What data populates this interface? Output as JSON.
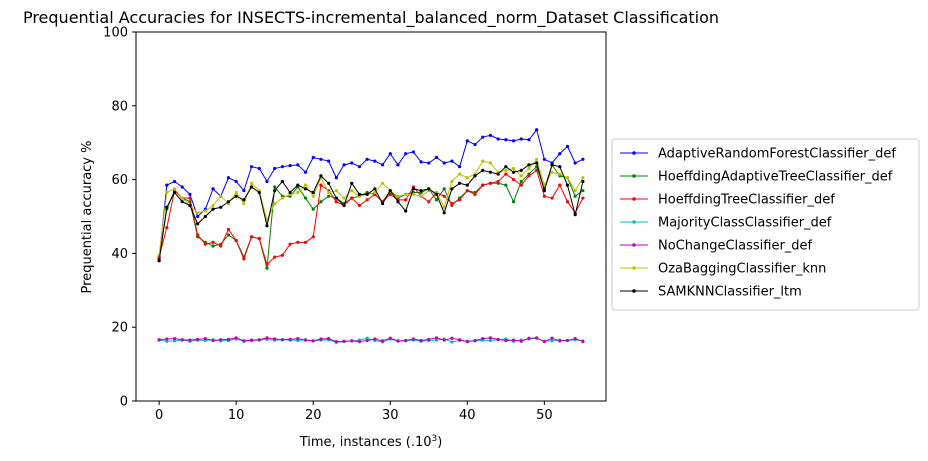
{
  "chart_data": {
    "type": "line",
    "title": "Prequential Accuracies for INSECTS-incremental_balanced_norm_Dataset Classification",
    "xlabel": "Time, instances (.10",
    "xlabel_superscript": "3",
    "xlabel_suffix": ")",
    "ylabel": "Prequential accuracy %",
    "xlim": [
      -3,
      58
    ],
    "ylim": [
      0,
      100
    ],
    "xticks": [
      0,
      10,
      20,
      30,
      40,
      50
    ],
    "yticks": [
      0,
      20,
      40,
      60,
      80,
      100
    ],
    "grid": false,
    "legend_placement": "center-right-outside",
    "x": [
      0,
      1,
      2,
      3,
      4,
      5,
      6,
      7,
      8,
      9,
      10,
      11,
      12,
      13,
      14,
      15,
      16,
      17,
      18,
      19,
      20,
      21,
      22,
      23,
      24,
      25,
      26,
      27,
      28,
      29,
      30,
      31,
      32,
      33,
      34,
      35,
      36,
      37,
      38,
      39,
      40,
      41,
      42,
      43,
      44,
      45,
      46,
      47,
      48,
      49,
      50,
      51,
      52,
      53,
      54,
      55
    ],
    "series": [
      {
        "name": "AdaptiveRandomForestClassifier_def",
        "color": "#0000ff",
        "values": [
          38.5,
          58.5,
          59.5,
          58.0,
          56.0,
          50.0,
          52.0,
          57.5,
          55.5,
          60.5,
          59.5,
          57.0,
          63.5,
          63.0,
          59.5,
          63.0,
          63.5,
          63.8,
          64.0,
          62.0,
          66.0,
          65.5,
          65.0,
          60.5,
          64.0,
          64.5,
          63.5,
          65.5,
          65.0,
          64.0,
          67.0,
          64.0,
          67.0,
          67.5,
          64.8,
          64.5,
          66.0,
          64.5,
          65.0,
          63.5,
          70.5,
          69.5,
          71.5,
          72.0,
          71.0,
          70.8,
          70.5,
          71.0,
          70.8,
          73.5,
          65.5,
          64.5,
          67.0,
          69.0,
          64.5,
          65.5
        ]
      },
      {
        "name": "HoeffdingAdaptiveTreeClassifier_def",
        "color": "#008000",
        "values": [
          39.0,
          52.0,
          57.0,
          55.0,
          54.0,
          44.5,
          43.0,
          42.0,
          42.5,
          45.0,
          43.5,
          39.0,
          44.5,
          44.0,
          36.0,
          58.0,
          55.5,
          55.5,
          58.0,
          55.0,
          52.0,
          54.0,
          55.5,
          55.0,
          53.5,
          55.0,
          55.5,
          56.5,
          56.0,
          54.0,
          57.0,
          55.0,
          56.0,
          56.5,
          56.5,
          57.5,
          54.5,
          57.5,
          53.0,
          55.0,
          57.0,
          56.5,
          58.5,
          59.0,
          59.0,
          58.5,
          54.0,
          59.5,
          61.5,
          63.5,
          57.5,
          64.0,
          61.0,
          60.5,
          55.5,
          57.0
        ]
      },
      {
        "name": "HoeffdingTreeClassifier_def",
        "color": "#ff0000",
        "values": [
          39.0,
          47.0,
          57.0,
          55.0,
          55.0,
          45.0,
          42.5,
          43.0,
          42.0,
          46.5,
          43.5,
          38.5,
          44.5,
          44.0,
          37.0,
          39.0,
          39.5,
          42.5,
          43.0,
          43.0,
          44.5,
          58.5,
          57.0,
          54.0,
          53.0,
          55.0,
          53.0,
          54.5,
          56.0,
          54.0,
          56.0,
          54.5,
          54.5,
          58.0,
          55.5,
          54.0,
          56.5,
          55.5,
          53.5,
          54.5,
          57.0,
          56.0,
          58.5,
          59.0,
          59.5,
          61.5,
          60.0,
          58.5,
          61.0,
          62.5,
          55.5,
          55.0,
          58.5,
          54.0,
          51.0,
          55.0
        ]
      },
      {
        "name": "MajorityClassClassifier_def",
        "color": "#00bfbf",
        "values": [
          16.5,
          16.2,
          16.3,
          16.5,
          16.2,
          16.5,
          16.4,
          16.6,
          16.3,
          16.4,
          16.8,
          16.2,
          16.4,
          16.5,
          16.7,
          16.5,
          16.6,
          16.5,
          16.4,
          16.6,
          16.3,
          16.5,
          16.6,
          15.9,
          16.1,
          16.3,
          16.5,
          17.0,
          16.4,
          16.0,
          16.8,
          16.2,
          16.3,
          16.5,
          16.2,
          16.4,
          16.5,
          16.8,
          16.0,
          16.4,
          16.2,
          16.3,
          16.5,
          16.4,
          16.6,
          16.8,
          16.2,
          16.5,
          16.8,
          17.0,
          16.2,
          16.3,
          16.5,
          16.4,
          16.6,
          16.3
        ]
      },
      {
        "name": "NoChangeClassifier_def",
        "color": "#bf00bf",
        "values": [
          16.6,
          16.8,
          16.9,
          16.6,
          16.5,
          16.7,
          16.9,
          16.4,
          16.6,
          16.7,
          17.1,
          16.3,
          16.5,
          16.6,
          17.1,
          16.8,
          16.6,
          16.7,
          16.9,
          16.5,
          16.3,
          16.8,
          16.9,
          16.1,
          16.2,
          16.3,
          16.1,
          16.4,
          16.8,
          16.3,
          17.0,
          16.3,
          16.4,
          16.8,
          16.4,
          16.7,
          17.1,
          16.5,
          17.0,
          16.6,
          16.1,
          16.4,
          16.9,
          17.1,
          16.7,
          16.4,
          16.5,
          16.2,
          17.0,
          17.1,
          16.1,
          17.0,
          16.3,
          16.4,
          16.9,
          16.1
        ]
      },
      {
        "name": "OzaBaggingClassifier_knn",
        "color": "#bfbf00",
        "values": [
          39.5,
          56.5,
          57.5,
          55.0,
          53.0,
          51.0,
          51.5,
          53.0,
          55.5,
          53.5,
          56.5,
          53.5,
          59.0,
          57.0,
          49.0,
          53.5,
          55.0,
          56.0,
          56.5,
          58.5,
          55.5,
          60.5,
          56.5,
          57.0,
          55.0,
          57.0,
          55.5,
          56.0,
          56.5,
          59.0,
          57.0,
          55.5,
          56.0,
          56.0,
          55.5,
          57.0,
          56.5,
          52.5,
          59.5,
          61.5,
          60.5,
          61.5,
          65.0,
          64.5,
          62.0,
          62.5,
          63.0,
          61.0,
          63.0,
          65.5,
          58.5,
          62.0,
          61.5,
          60.5,
          57.0,
          60.5
        ]
      },
      {
        "name": "SAMKNNClassifier_ltm",
        "color": "#000000",
        "values": [
          38.0,
          52.5,
          56.5,
          54.0,
          53.0,
          48.0,
          50.0,
          52.0,
          52.5,
          54.0,
          55.5,
          54.5,
          58.0,
          56.5,
          47.5,
          57.0,
          59.5,
          56.5,
          58.5,
          57.5,
          56.5,
          61.0,
          59.0,
          55.0,
          53.0,
          59.0,
          56.0,
          56.0,
          57.5,
          53.5,
          57.0,
          54.0,
          51.5,
          57.5,
          57.0,
          57.5,
          56.0,
          51.0,
          57.5,
          59.0,
          58.5,
          61.0,
          62.5,
          62.0,
          61.5,
          63.5,
          62.0,
          62.5,
          64.0,
          64.5,
          57.0,
          64.0,
          63.5,
          58.5,
          50.5,
          59.5
        ]
      }
    ]
  }
}
